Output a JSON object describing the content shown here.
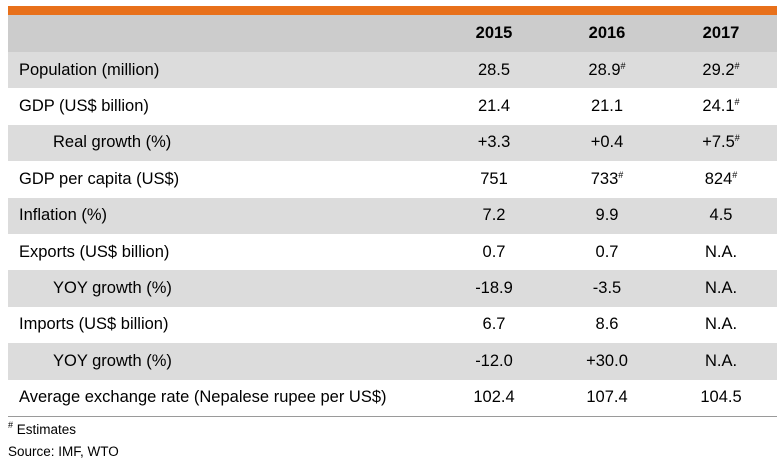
{
  "chart_data": {
    "type": "table",
    "columns": [
      "2015",
      "2016",
      "2017"
    ],
    "rows": [
      {
        "label": "Population (million)",
        "indent": false,
        "values": [
          "28.5",
          "28.9",
          "29.2"
        ],
        "estimate": [
          false,
          true,
          true
        ]
      },
      {
        "label": "GDP (US$ billion)",
        "indent": false,
        "values": [
          "21.4",
          "21.1",
          "24.1"
        ],
        "estimate": [
          false,
          false,
          true
        ]
      },
      {
        "label": "Real growth (%)",
        "indent": true,
        "values": [
          "+3.3",
          "+0.4",
          "+7.5"
        ],
        "estimate": [
          false,
          false,
          true
        ]
      },
      {
        "label": "GDP per capita (US$)",
        "indent": false,
        "values": [
          "751",
          "733",
          "824"
        ],
        "estimate": [
          false,
          true,
          true
        ]
      },
      {
        "label": "Inflation (%)",
        "indent": false,
        "values": [
          "7.2",
          "9.9",
          "4.5"
        ],
        "estimate": [
          false,
          false,
          false
        ]
      },
      {
        "label": "Exports (US$ billion)",
        "indent": false,
        "values": [
          "0.7",
          "0.7",
          "N.A."
        ],
        "estimate": [
          false,
          false,
          false
        ]
      },
      {
        "label": "YOY growth (%)",
        "indent": true,
        "values": [
          "-18.9",
          "-3.5",
          "N.A."
        ],
        "estimate": [
          false,
          false,
          false
        ]
      },
      {
        "label": "Imports (US$ billion)",
        "indent": false,
        "values": [
          "6.7",
          "8.6",
          "N.A."
        ],
        "estimate": [
          false,
          false,
          false
        ]
      },
      {
        "label": "YOY growth (%)",
        "indent": true,
        "values": [
          "-12.0",
          "+30.0",
          "N.A."
        ],
        "estimate": [
          false,
          false,
          false
        ]
      },
      {
        "label": "Average exchange rate (Nepalese rupee per US$)",
        "indent": false,
        "values": [
          "102.4",
          "107.4",
          "104.5"
        ],
        "estimate": [
          false,
          false,
          false
        ]
      }
    ],
    "estimate_marker": "#"
  },
  "footnotes": {
    "estimate_marker": "#",
    "estimate_text": "Estimates",
    "source": "Source: IMF, WTO"
  },
  "colors": {
    "accent_bar": "#e8701a",
    "header_background": "#cccccc",
    "row_shading": "#dcdcdc"
  }
}
